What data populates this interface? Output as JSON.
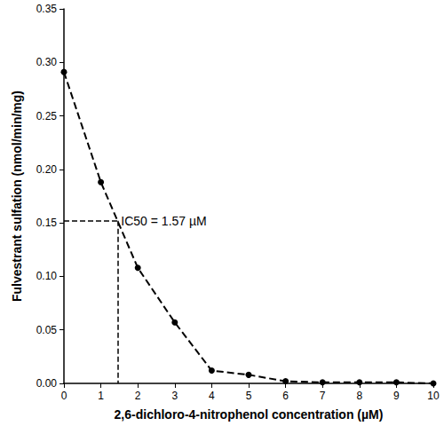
{
  "chart_data": {
    "type": "line",
    "x_label": "2,6-dichloro-4-nitrophenol concentration (µM)",
    "y_label": "Fulvestrant sulfation (nmol/min/mg)",
    "x": [
      0,
      1,
      2,
      3,
      4,
      5,
      6,
      7,
      8,
      9,
      10
    ],
    "values": [
      0.291,
      0.188,
      0.108,
      0.057,
      0.012,
      0.008,
      0.002,
      0.001,
      0.001,
      0.001,
      0.0
    ],
    "color": "#000000",
    "marker": "circle",
    "line_style": "dashed",
    "xlim": [
      0,
      10
    ],
    "xticks": [
      0,
      1,
      2,
      3,
      4,
      5,
      6,
      7,
      8,
      9,
      10
    ],
    "ylim": [
      0,
      0.35
    ],
    "yticks": [
      {
        "value": 0,
        "label": "0.00"
      },
      {
        "value": 0.05,
        "label": "0.05"
      },
      {
        "value": 0.1,
        "label": "0.10"
      },
      {
        "value": 0.15,
        "label": "0.15"
      },
      {
        "value": 0.2,
        "label": "0.20"
      },
      {
        "value": 0.25,
        "label": "0.25"
      },
      {
        "value": 0.3,
        "label": "0.30"
      },
      {
        "value": 0.35,
        "label": "0.35"
      }
    ],
    "annotation": {
      "text": "IC50 = 1.57 µM",
      "x": 1.45,
      "y": 0.152
    },
    "grid": false
  }
}
